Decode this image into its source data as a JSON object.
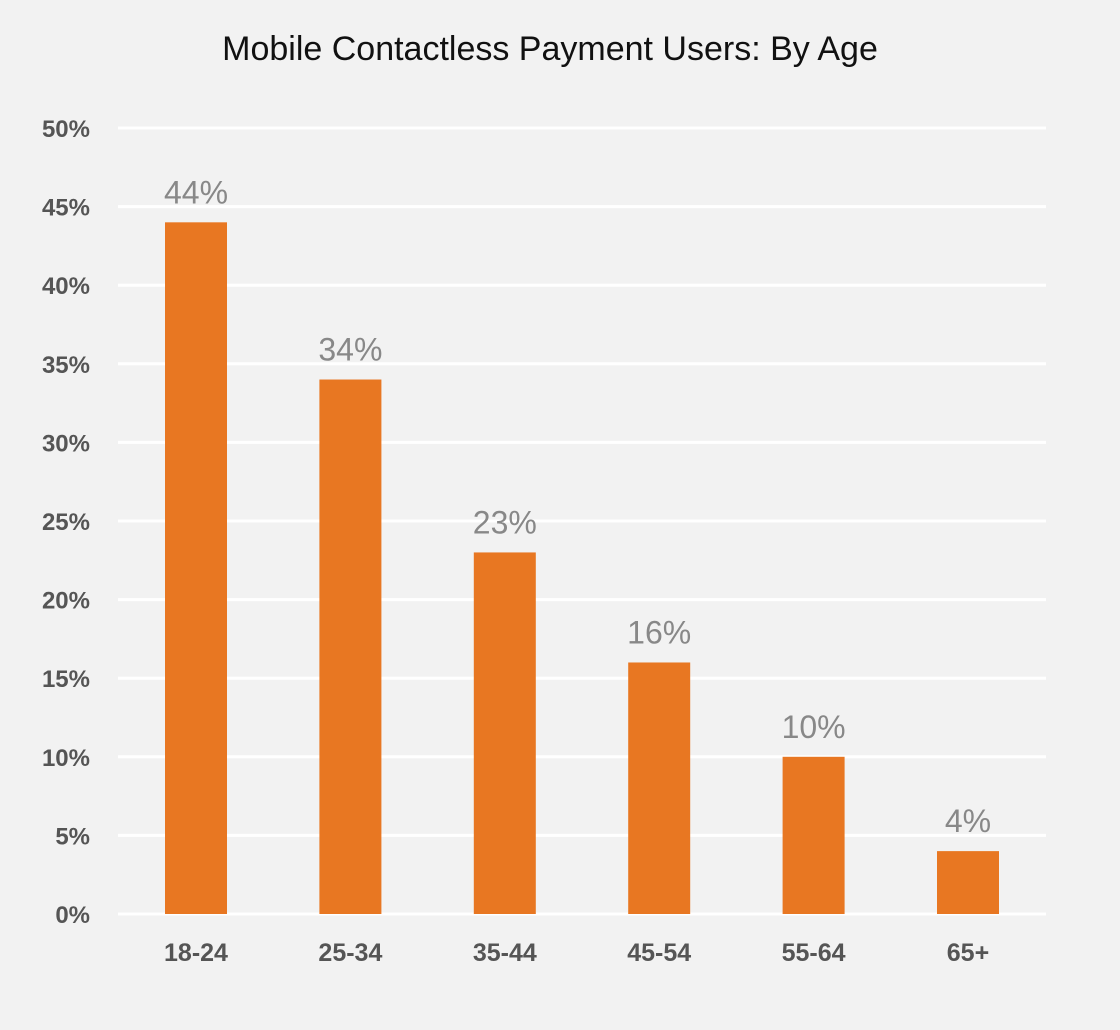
{
  "chart_data": {
    "type": "bar",
    "title": "Mobile Contactless Payment Users: By Age",
    "categories": [
      "18-24",
      "25-34",
      "35-44",
      "45-54",
      "55-64",
      "65+"
    ],
    "values": [
      44,
      34,
      23,
      16,
      10,
      4
    ],
    "value_labels": [
      "44%",
      "34%",
      "23%",
      "16%",
      "10%",
      "4%"
    ],
    "y_ticks": [
      0,
      5,
      10,
      15,
      20,
      25,
      30,
      35,
      40,
      45,
      50
    ],
    "y_tick_labels": [
      "0%",
      "5%",
      "10%",
      "15%",
      "20%",
      "25%",
      "30%",
      "35%",
      "40%",
      "45%",
      "50%"
    ],
    "ylim": [
      0,
      50
    ],
    "xlabel": "",
    "ylabel": "",
    "grid": true,
    "legend": "none",
    "colors": {
      "bar": "#e87722",
      "grid": "#ffffff",
      "background": "#f2f2f2",
      "tick_text": "#555555",
      "data_label_text": "#888888",
      "title_text": "#111111"
    }
  }
}
